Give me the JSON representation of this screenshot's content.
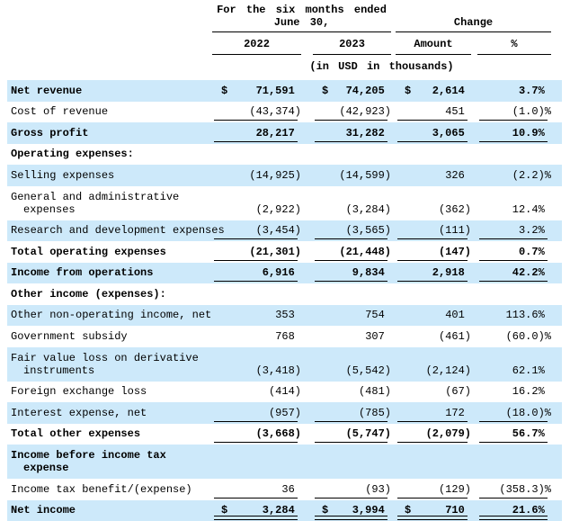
{
  "header": {
    "period": {
      "line1": "For the six months ended",
      "line2": "June 30,"
    },
    "change_label": "Change",
    "columns": [
      "2022",
      "2023",
      "Amount",
      "%"
    ],
    "units_note": "(in USD in thousands)"
  },
  "colors": {
    "row_highlight": "#cde9fa",
    "rule": "#000000",
    "text": "#000000",
    "background": "#ffffff"
  },
  "rows": [
    {
      "lines": [
        "Net revenue"
      ],
      "bold": true,
      "shade": true,
      "rule": "none",
      "cells": [
        {
          "cur": "$",
          "val": "71,591"
        },
        {
          "cur": "$",
          "val": "74,205"
        },
        {
          "cur": "$",
          "val": "2,614"
        },
        {
          "val": "3.7%"
        }
      ]
    },
    {
      "lines": [
        "Cost of revenue"
      ],
      "bold": false,
      "shade": false,
      "rule": "single",
      "cells": [
        {
          "val": "(43,374)"
        },
        {
          "val": "(42,923)"
        },
        {
          "val": "451"
        },
        {
          "val": "(1.0)%"
        }
      ]
    },
    {
      "lines": [
        "Gross profit"
      ],
      "bold": true,
      "shade": true,
      "rule": "single",
      "cells": [
        {
          "val": "28,217"
        },
        {
          "val": "31,282"
        },
        {
          "val": "3,065"
        },
        {
          "val": "10.9%"
        }
      ]
    },
    {
      "lines": [
        "Operating expenses:"
      ],
      "bold": true,
      "shade": false,
      "rule": "none",
      "cells": []
    },
    {
      "lines": [
        "Selling expenses"
      ],
      "bold": false,
      "shade": true,
      "rule": "none",
      "cells": [
        {
          "val": "(14,925)"
        },
        {
          "val": "(14,599)"
        },
        {
          "val": "326"
        },
        {
          "val": "(2.2)%"
        }
      ]
    },
    {
      "lines": [
        "General and administrative",
        "expenses"
      ],
      "bold": false,
      "shade": false,
      "rule": "none",
      "cells": [
        {
          "val": "(2,922)"
        },
        {
          "val": "(3,284)"
        },
        {
          "val": "(362)"
        },
        {
          "val": "12.4%"
        }
      ]
    },
    {
      "lines": [
        "Research and development expenses"
      ],
      "bold": false,
      "shade": true,
      "rule": "single",
      "cells": [
        {
          "val": "(3,454)"
        },
        {
          "val": "(3,565)"
        },
        {
          "val": "(111)"
        },
        {
          "val": "3.2%"
        }
      ]
    },
    {
      "lines": [
        "Total operating expenses"
      ],
      "bold": true,
      "shade": false,
      "rule": "single",
      "cells": [
        {
          "val": "(21,301)"
        },
        {
          "val": "(21,448)"
        },
        {
          "val": "(147)"
        },
        {
          "val": "0.7%"
        }
      ]
    },
    {
      "lines": [
        "Income from operations"
      ],
      "bold": true,
      "shade": true,
      "rule": "single",
      "cells": [
        {
          "val": "6,916"
        },
        {
          "val": "9,834"
        },
        {
          "val": "2,918"
        },
        {
          "val": "42.2%"
        }
      ]
    },
    {
      "lines": [
        "Other income (expenses):"
      ],
      "bold": true,
      "shade": false,
      "rule": "none",
      "cells": []
    },
    {
      "lines": [
        "Other non-operating income, net"
      ],
      "bold": false,
      "shade": true,
      "rule": "none",
      "cells": [
        {
          "val": "353"
        },
        {
          "val": "754"
        },
        {
          "val": "401"
        },
        {
          "val": "113.6%"
        }
      ]
    },
    {
      "lines": [
        "Government subsidy"
      ],
      "bold": false,
      "shade": false,
      "rule": "none",
      "cells": [
        {
          "val": "768"
        },
        {
          "val": "307"
        },
        {
          "val": "(461)"
        },
        {
          "val": "(60.0)%"
        }
      ]
    },
    {
      "lines": [
        "Fair value loss on derivative",
        "instruments"
      ],
      "bold": false,
      "shade": true,
      "rule": "none",
      "cells": [
        {
          "val": "(3,418)"
        },
        {
          "val": "(5,542)"
        },
        {
          "val": "(2,124)"
        },
        {
          "val": "62.1%"
        }
      ]
    },
    {
      "lines": [
        "Foreign exchange loss"
      ],
      "bold": false,
      "shade": false,
      "rule": "none",
      "cells": [
        {
          "val": "(414)"
        },
        {
          "val": "(481)"
        },
        {
          "val": "(67)"
        },
        {
          "val": "16.2%"
        }
      ]
    },
    {
      "lines": [
        "Interest expense, net"
      ],
      "bold": false,
      "shade": true,
      "rule": "single",
      "cells": [
        {
          "val": "(957)"
        },
        {
          "val": "(785)"
        },
        {
          "val": "172"
        },
        {
          "val": "(18.0)%"
        }
      ]
    },
    {
      "lines": [
        "Total other expenses"
      ],
      "bold": true,
      "shade": false,
      "rule": "single",
      "cells": [
        {
          "val": "(3,668)"
        },
        {
          "val": "(5,747)"
        },
        {
          "val": "(2,079)"
        },
        {
          "val": "56.7%"
        }
      ]
    },
    {
      "lines": [
        "Income before income tax",
        "expense"
      ],
      "bold": true,
      "shade": true,
      "rule": "none",
      "cells": []
    },
    {
      "lines": [
        "Income tax benefit/(expense)"
      ],
      "bold": false,
      "shade": false,
      "rule": "single",
      "cells": [
        {
          "val": "36"
        },
        {
          "val": "(93)"
        },
        {
          "val": "(129)"
        },
        {
          "val": "(358.3)%"
        }
      ]
    },
    {
      "lines": [
        "Net income"
      ],
      "bold": true,
      "shade": true,
      "rule": "double",
      "cells": [
        {
          "cur": "$",
          "val": "3,284"
        },
        {
          "cur": "$",
          "val": "3,994"
        },
        {
          "cur": "$",
          "val": "710"
        },
        {
          "val": "21.6%"
        }
      ]
    }
  ]
}
